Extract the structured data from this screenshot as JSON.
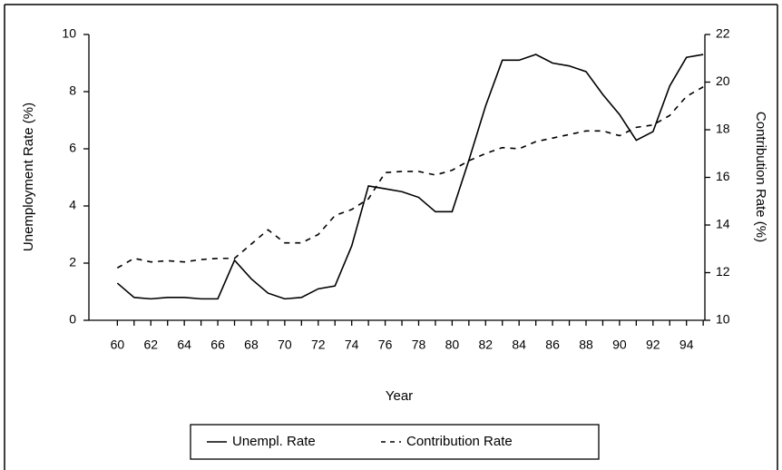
{
  "chart_data": {
    "type": "line",
    "x": [
      60,
      61,
      62,
      63,
      64,
      65,
      66,
      67,
      68,
      69,
      70,
      71,
      72,
      73,
      74,
      75,
      76,
      77,
      78,
      79,
      80,
      81,
      82,
      83,
      84,
      85,
      86,
      87,
      88,
      89,
      90,
      91,
      92,
      93,
      94,
      95
    ],
    "series": [
      {
        "name": "Unempl. Rate",
        "color": "#000000",
        "linestyle": "solid",
        "values": [
          1.3,
          0.8,
          0.75,
          0.8,
          0.8,
          0.75,
          0.75,
          2.1,
          1.45,
          0.95,
          0.75,
          0.8,
          1.1,
          1.2,
          2.6,
          4.7,
          4.6,
          4.5,
          4.3,
          3.8,
          3.8,
          5.6,
          7.5,
          9.1,
          9.1,
          9.3,
          9.0,
          8.9,
          8.7,
          7.9,
          7.2,
          6.3,
          6.6,
          8.2,
          9.2,
          9.3
        ]
      },
      {
        "name": "Contribution Rate",
        "color": "#000000",
        "linestyle": "dashed",
        "axis": "y2",
        "values": [
          12.2,
          12.6,
          12.45,
          12.5,
          12.45,
          12.55,
          12.6,
          12.6,
          13.2,
          13.8,
          13.25,
          13.25,
          13.6,
          14.4,
          14.65,
          15.1,
          16.2,
          16.25,
          16.25,
          16.1,
          16.3,
          16.7,
          17.0,
          17.25,
          17.2,
          17.5,
          17.65,
          17.8,
          17.95,
          17.95,
          17.75,
          18.1,
          18.2,
          18.6,
          19.4,
          19.8
        ]
      }
    ],
    "xlabel": "Year",
    "ylabel": "Unemployment Rate (%)",
    "y2label": "Contribution Rate (%)",
    "xlim": [
      58.3,
      95.1
    ],
    "xticks": [
      60,
      62,
      64,
      66,
      68,
      70,
      72,
      74,
      76,
      78,
      80,
      82,
      84,
      86,
      88,
      90,
      92,
      94
    ],
    "xminorticks": [
      61,
      63,
      65,
      67,
      69,
      71,
      73,
      75,
      77,
      79,
      81,
      83,
      85,
      87,
      89,
      91,
      93,
      95
    ],
    "ylim": [
      0,
      10
    ],
    "yticks": [
      0,
      2,
      4,
      6,
      8,
      10
    ],
    "y2lim": [
      10,
      22
    ],
    "y2ticks": [
      10,
      12,
      14,
      16,
      18,
      20,
      22
    ],
    "legend": "bottom",
    "grid": false
  }
}
